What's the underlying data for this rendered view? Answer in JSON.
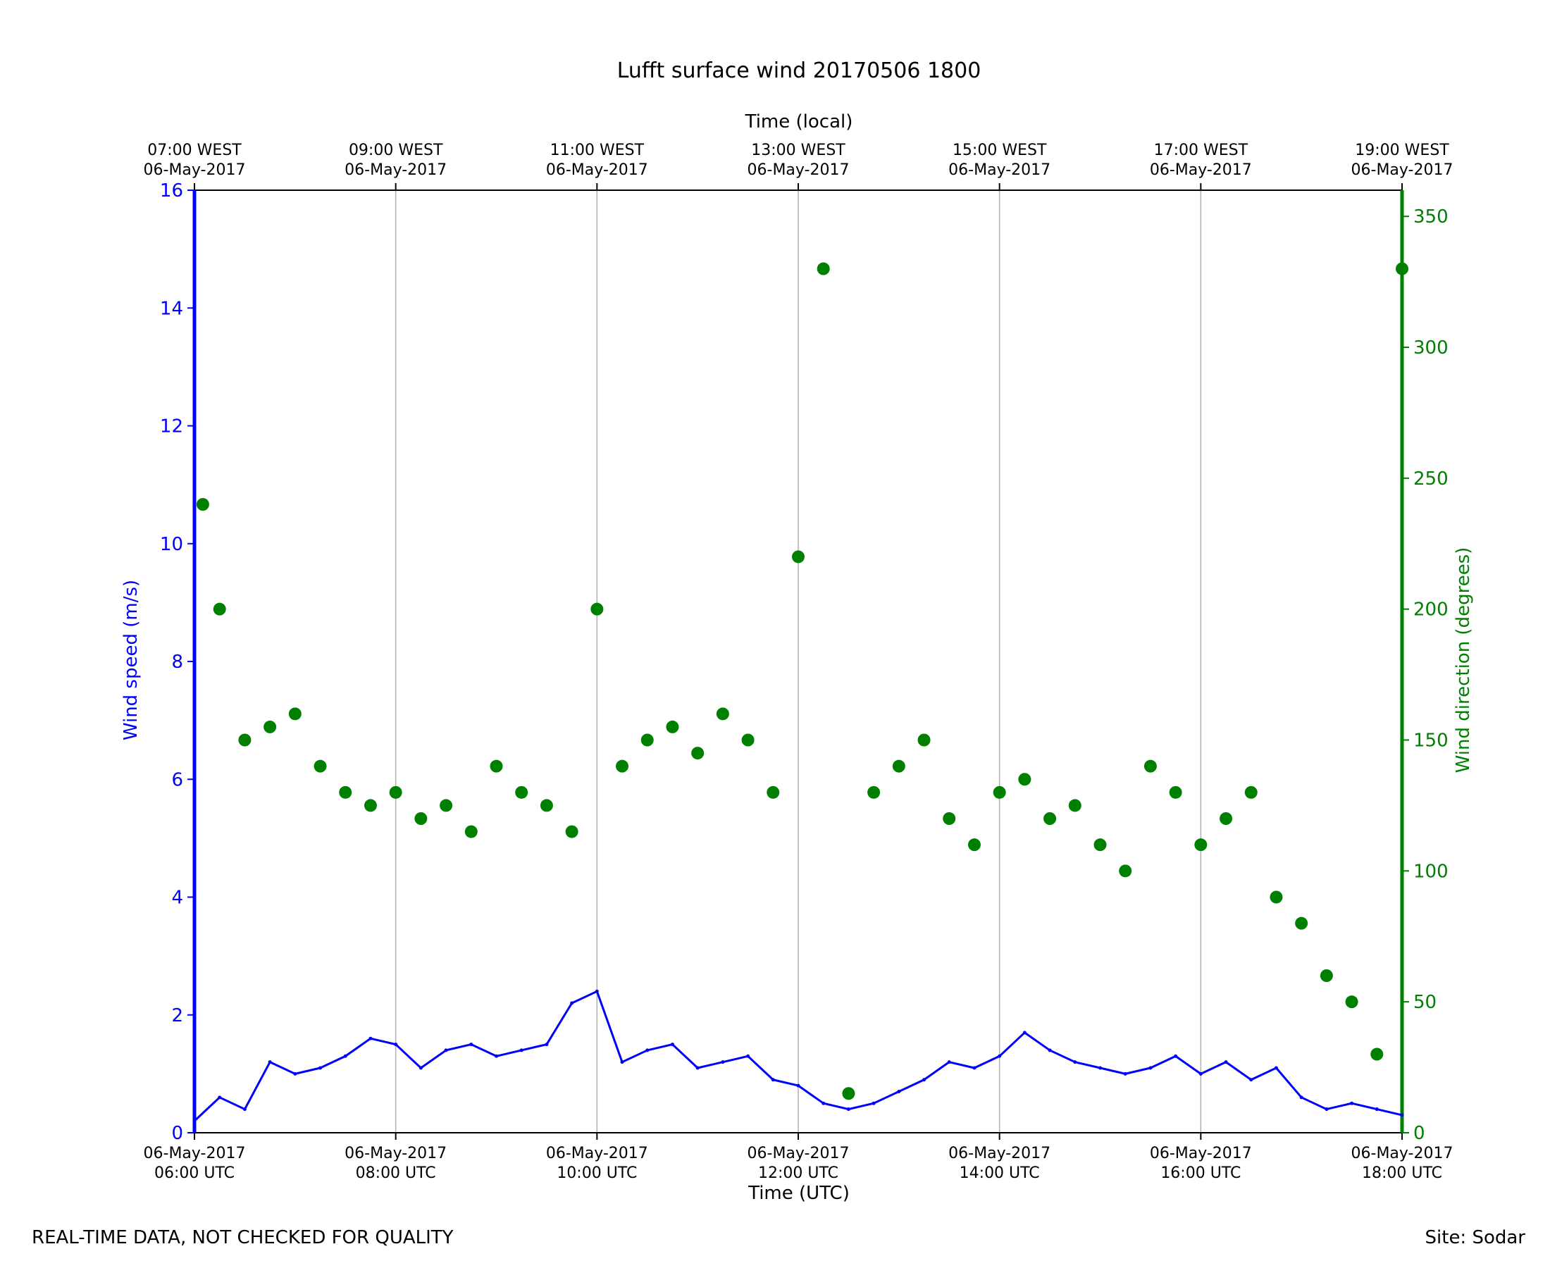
{
  "chart_data": {
    "type": "line+scatter",
    "title": "Lufft surface wind 20170506 1800",
    "xlabel": "Time (UTC)",
    "xlabel_top": "Time (local)",
    "ylabel_left": "Wind speed (m/s)",
    "ylabel_right": "Wind direction (degrees)",
    "ylim_left": [
      0,
      16
    ],
    "ylim_right": [
      0,
      360
    ],
    "xlim_hours_utc": [
      6,
      18
    ],
    "grid": "vertical",
    "colors": {
      "speed": "#0000ff",
      "direction": "#008000"
    },
    "bottom_ticks": [
      [
        "06-May-2017",
        "06:00 UTC"
      ],
      [
        "06-May-2017",
        "08:00 UTC"
      ],
      [
        "06-May-2017",
        "10:00 UTC"
      ],
      [
        "06-May-2017",
        "12:00 UTC"
      ],
      [
        "06-May-2017",
        "14:00 UTC"
      ],
      [
        "06-May-2017",
        "16:00 UTC"
      ],
      [
        "06-May-2017",
        "18:00 UTC"
      ]
    ],
    "top_ticks": [
      [
        "07:00 WEST",
        "06-May-2017"
      ],
      [
        "09:00 WEST",
        "06-May-2017"
      ],
      [
        "11:00 WEST",
        "06-May-2017"
      ],
      [
        "13:00 WEST",
        "06-May-2017"
      ],
      [
        "15:00 WEST",
        "06-May-2017"
      ],
      [
        "17:00 WEST",
        "06-May-2017"
      ],
      [
        "19:00 WEST",
        "06-May-2017"
      ]
    ],
    "left_ticks": [
      "0",
      "2",
      "4",
      "6",
      "8",
      "10",
      "12",
      "14",
      "16"
    ],
    "right_ticks": [
      "0",
      "50",
      "100",
      "150",
      "200",
      "250",
      "300",
      "350"
    ],
    "series": [
      {
        "name": "Wind speed",
        "style": "line",
        "axis": "left",
        "x": [
          "06:00",
          "06:15",
          "06:30",
          "06:45",
          "07:00",
          "07:15",
          "07:30",
          "07:45",
          "08:00",
          "08:15",
          "08:30",
          "08:45",
          "09:00",
          "09:15",
          "09:30",
          "09:45",
          "10:00",
          "10:15",
          "10:30",
          "10:45",
          "11:00",
          "11:15",
          "11:30",
          "11:45",
          "12:00",
          "12:15",
          "12:30",
          "12:45",
          "13:00",
          "13:15",
          "13:30",
          "13:45",
          "14:00",
          "14:15",
          "14:30",
          "14:45",
          "15:00",
          "15:15",
          "15:30",
          "15:45",
          "16:00",
          "16:15",
          "16:30",
          "16:45",
          "17:00",
          "17:15",
          "17:30",
          "17:45",
          "18:00"
        ],
        "values": [
          0.2,
          0.6,
          0.4,
          1.2,
          1.0,
          1.1,
          1.3,
          1.6,
          1.5,
          1.1,
          1.4,
          1.5,
          1.3,
          1.4,
          1.5,
          2.2,
          2.4,
          1.2,
          1.4,
          1.5,
          1.1,
          1.2,
          1.3,
          0.9,
          0.8,
          0.5,
          0.4,
          0.5,
          0.7,
          0.9,
          1.2,
          1.1,
          1.3,
          1.7,
          1.4,
          1.2,
          1.1,
          1.0,
          1.1,
          1.3,
          1.0,
          1.2,
          0.9,
          1.1,
          0.6,
          0.4,
          0.5,
          0.4,
          0.3
        ]
      },
      {
        "name": "Wind direction",
        "style": "scatter",
        "axis": "right",
        "x": [
          "06:05",
          "06:15",
          "06:30",
          "06:45",
          "07:00",
          "07:15",
          "07:30",
          "07:45",
          "08:00",
          "08:15",
          "08:30",
          "08:45",
          "09:00",
          "09:15",
          "09:30",
          "09:45",
          "10:00",
          "10:15",
          "10:30",
          "10:45",
          "11:00",
          "11:15",
          "11:30",
          "11:45",
          "12:00",
          "12:15",
          "12:30",
          "12:45",
          "13:00",
          "13:15",
          "13:30",
          "13:45",
          "14:00",
          "14:15",
          "14:30",
          "14:45",
          "15:00",
          "15:15",
          "15:30",
          "15:45",
          "16:00",
          "16:15",
          "16:30",
          "16:45",
          "17:00",
          "17:15",
          "17:30",
          "17:45",
          "18:00"
        ],
        "values": [
          240,
          200,
          150,
          155,
          160,
          140,
          130,
          125,
          130,
          120,
          125,
          115,
          140,
          130,
          125,
          115,
          200,
          140,
          150,
          155,
          145,
          160,
          150,
          130,
          220,
          330,
          15,
          130,
          140,
          150,
          120,
          110,
          130,
          135,
          120,
          125,
          110,
          100,
          140,
          130,
          110,
          120,
          130,
          90,
          80,
          60,
          50,
          30,
          330
        ]
      }
    ],
    "footer_left": "REAL-TIME DATA, NOT CHECKED FOR QUALITY",
    "footer_right": "Site: Sodar"
  }
}
